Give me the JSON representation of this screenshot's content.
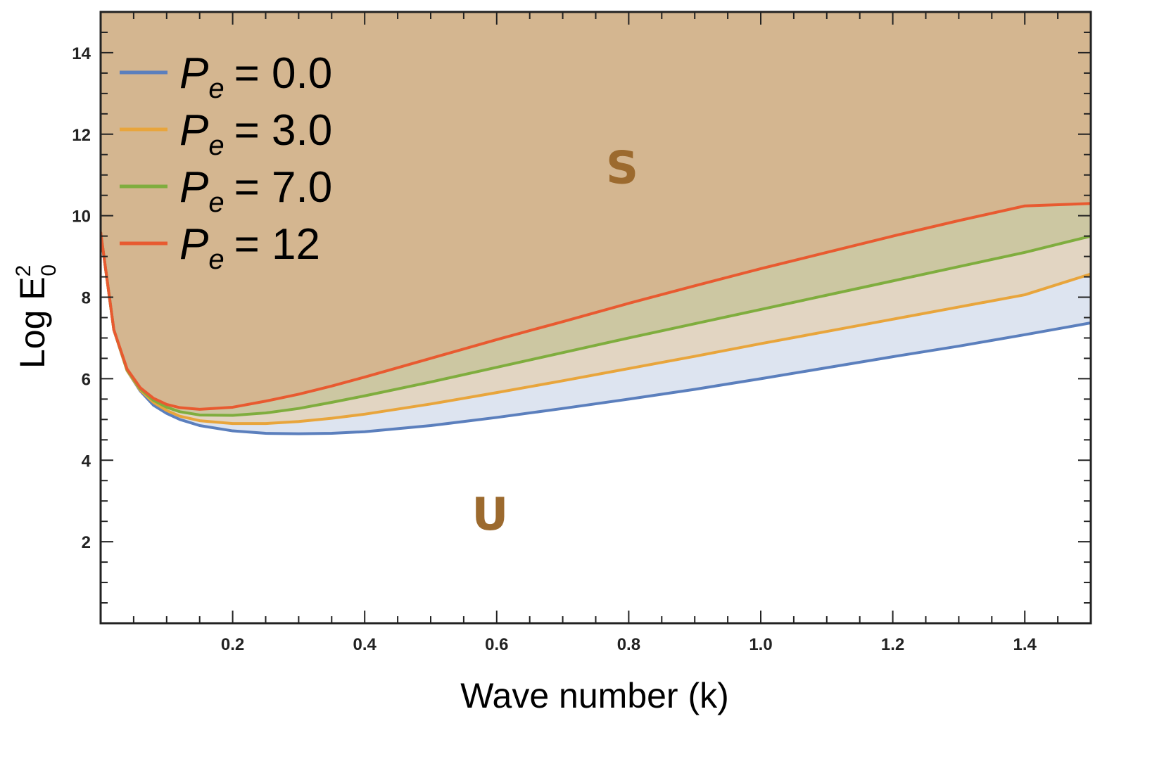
{
  "chart_data": {
    "type": "area",
    "xlabel": "Wave number (k)",
    "ylabel": "Log E",
    "ylabel_sup": "2",
    "ylabel_sub": "0",
    "xlim": [
      0.0,
      1.5
    ],
    "ylim": [
      0.0,
      15.0
    ],
    "xticks": [
      0.2,
      0.4,
      0.6,
      0.8,
      1.0,
      1.2,
      1.4
    ],
    "xtick_labels": [
      "0.2",
      "0.4",
      "0.6",
      "0.8",
      "1.0",
      "1.2",
      "1.4"
    ],
    "yticks": [
      2,
      4,
      6,
      8,
      10,
      12,
      14
    ],
    "ytick_labels": [
      "2",
      "4",
      "6",
      "8",
      "10",
      "12",
      "14"
    ],
    "grid": false,
    "legend_position": "top-left",
    "region_labels": [
      {
        "text": "S",
        "x": 0.79,
        "y": 10.8
      },
      {
        "text": "U",
        "x": 0.59,
        "y": 2.3
      }
    ],
    "upper_fill_color": "#d4b690",
    "series": [
      {
        "name": "Pe = 0.0",
        "legend_symbol": "P",
        "legend_subscript": "e",
        "legend_value": "= 0.0",
        "color": "#5b7fbd",
        "fill": "#dde4f0",
        "x": [
          0.0,
          0.02,
          0.04,
          0.06,
          0.08,
          0.1,
          0.12,
          0.15,
          0.2,
          0.25,
          0.3,
          0.35,
          0.4,
          0.5,
          0.6,
          0.7,
          0.8,
          0.9,
          1.0,
          1.1,
          1.2,
          1.3,
          1.4,
          1.5
        ],
        "y": [
          9.6,
          7.2,
          6.2,
          5.7,
          5.35,
          5.15,
          5.0,
          4.85,
          4.72,
          4.66,
          4.65,
          4.66,
          4.7,
          4.85,
          5.05,
          5.27,
          5.5,
          5.74,
          6.0,
          6.27,
          6.54,
          6.8,
          7.08,
          7.37
        ]
      },
      {
        "name": "Pe = 3.0",
        "legend_symbol": "P",
        "legend_subscript": "e",
        "legend_value": "= 3.0",
        "color": "#e8a53c",
        "fill": "#e2d5c2",
        "x": [
          0.0,
          0.02,
          0.04,
          0.06,
          0.08,
          0.1,
          0.12,
          0.15,
          0.2,
          0.25,
          0.3,
          0.35,
          0.4,
          0.5,
          0.6,
          0.7,
          0.8,
          0.9,
          1.0,
          1.1,
          1.2,
          1.3,
          1.4,
          1.5
        ],
        "y": [
          9.6,
          7.2,
          6.2,
          5.72,
          5.42,
          5.22,
          5.08,
          4.97,
          4.9,
          4.9,
          4.95,
          5.03,
          5.13,
          5.38,
          5.66,
          5.95,
          6.25,
          6.55,
          6.86,
          7.16,
          7.46,
          7.76,
          8.06,
          8.57
        ]
      },
      {
        "name": "Pe = 7.0",
        "legend_symbol": "P",
        "legend_subscript": "e",
        "legend_value": "= 7.0",
        "color": "#7fad3e",
        "fill": "#ccc7a2",
        "x": [
          0.0,
          0.02,
          0.04,
          0.06,
          0.08,
          0.1,
          0.12,
          0.15,
          0.2,
          0.25,
          0.3,
          0.35,
          0.4,
          0.5,
          0.6,
          0.7,
          0.8,
          0.9,
          1.0,
          1.1,
          1.2,
          1.3,
          1.4,
          1.5
        ],
        "y": [
          9.6,
          7.2,
          6.22,
          5.75,
          5.47,
          5.3,
          5.19,
          5.11,
          5.1,
          5.16,
          5.27,
          5.42,
          5.58,
          5.92,
          6.28,
          6.64,
          7.0,
          7.35,
          7.7,
          8.05,
          8.4,
          8.75,
          9.1,
          9.5
        ]
      },
      {
        "name": "Pe = 12",
        "legend_symbol": "P",
        "legend_subscript": "e",
        "legend_value": "= 12",
        "color": "#e85a30",
        "fill": "#d4b690",
        "x": [
          0.0,
          0.02,
          0.04,
          0.06,
          0.08,
          0.1,
          0.12,
          0.15,
          0.2,
          0.25,
          0.3,
          0.35,
          0.4,
          0.5,
          0.6,
          0.7,
          0.8,
          0.9,
          1.0,
          1.1,
          1.2,
          1.3,
          1.4,
          1.5
        ],
        "y": [
          9.6,
          7.2,
          6.24,
          5.78,
          5.52,
          5.37,
          5.29,
          5.25,
          5.3,
          5.45,
          5.62,
          5.82,
          6.04,
          6.5,
          6.96,
          7.4,
          7.85,
          8.28,
          8.7,
          9.1,
          9.5,
          9.88,
          10.24,
          10.3
        ]
      }
    ]
  }
}
